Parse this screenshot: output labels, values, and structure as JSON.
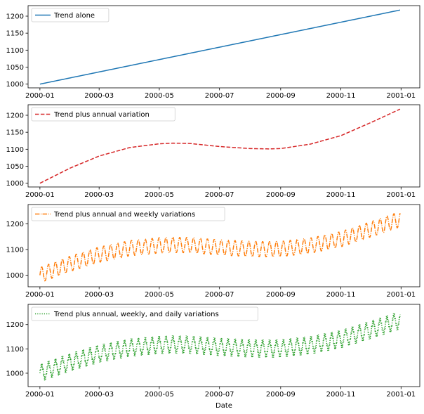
{
  "figure": {
    "xlabel": "Date"
  },
  "chart_data": [
    {
      "type": "line",
      "legend": {
        "placement": "upper-left"
      },
      "xlim": [
        "1999-12-20",
        "2001-01-20"
      ],
      "ylim": [
        989,
        1231
      ],
      "x_ticks": [
        "2000-01",
        "2000-03",
        "2000-05",
        "2000-07",
        "2000-09",
        "2000-11",
        "2001-01"
      ],
      "y_ticks": [
        1000,
        1050,
        1100,
        1150,
        1200
      ],
      "show_x_label": false,
      "series": [
        {
          "name": "Trend alone",
          "color": "#1f77b4",
          "style": "solid",
          "x": [
            "2000-01-01",
            "2000-12-31"
          ],
          "y": [
            1000,
            1218
          ]
        }
      ]
    },
    {
      "type": "line",
      "legend": {
        "placement": "upper-left"
      },
      "xlim": [
        "1999-12-20",
        "2001-01-20"
      ],
      "ylim": [
        989,
        1231
      ],
      "x_ticks": [
        "2000-01",
        "2000-03",
        "2000-05",
        "2000-07",
        "2000-09",
        "2000-11",
        "2001-01"
      ],
      "y_ticks": [
        1000,
        1050,
        1100,
        1150,
        1200
      ],
      "show_x_label": false,
      "series": [
        {
          "name": "Trend plus annual variation",
          "color": "#d62728",
          "style": "dashed",
          "x": [
            "2000-01-01",
            "2000-02-01",
            "2000-03-01",
            "2000-04-01",
            "2000-05-01",
            "2000-05-15",
            "2000-06-01",
            "2000-07-01",
            "2000-08-01",
            "2000-08-20",
            "2000-09-01",
            "2000-10-01",
            "2000-11-01",
            "2000-12-01",
            "2000-12-31"
          ],
          "y": [
            1000,
            1045,
            1080,
            1105,
            1116,
            1118,
            1117,
            1108,
            1102,
            1101,
            1102,
            1115,
            1140,
            1178,
            1218
          ]
        }
      ]
    },
    {
      "type": "line",
      "legend": {
        "placement": "upper-left"
      },
      "xlim": [
        "1999-12-20",
        "2001-01-20"
      ],
      "ylim": [
        955,
        1275
      ],
      "x_ticks": [
        "2000-01",
        "2000-03",
        "2000-05",
        "2000-07",
        "2000-09",
        "2000-11",
        "2001-01"
      ],
      "y_ticks": [
        1000,
        1100,
        1200
      ],
      "show_x_label": false,
      "oscillation": {
        "period_days": 7,
        "amplitude": 30
      },
      "series": [
        {
          "name": "Trend plus annual and weekly variations",
          "color": "#ff7f0e",
          "style": "dashdot",
          "x": [
            "2000-01-01",
            "2000-02-01",
            "2000-03-01",
            "2000-04-01",
            "2000-05-01",
            "2000-05-15",
            "2000-06-01",
            "2000-07-01",
            "2000-08-01",
            "2000-08-20",
            "2000-09-01",
            "2000-10-01",
            "2000-11-01",
            "2000-12-01",
            "2000-12-31"
          ],
          "y": [
            1000,
            1045,
            1080,
            1105,
            1116,
            1118,
            1117,
            1108,
            1102,
            1101,
            1102,
            1115,
            1140,
            1178,
            1218
          ]
        }
      ]
    },
    {
      "type": "line",
      "legend": {
        "placement": "upper-left"
      },
      "xlim": [
        "1999-12-20",
        "2001-01-20"
      ],
      "ylim": [
        945,
        1283
      ],
      "x_ticks": [
        "2000-01",
        "2000-03",
        "2000-05",
        "2000-07",
        "2000-09",
        "2000-11",
        "2001-01"
      ],
      "y_ticks": [
        1000,
        1100,
        1200
      ],
      "show_x_label": true,
      "oscillation": {
        "period_days": 7,
        "amplitude": 30,
        "daily_amplitude": 10
      },
      "series": [
        {
          "name": "Trend plus annual, weekly, and daily variations",
          "color": "#2ca02c",
          "style": "dotted",
          "x": [
            "2000-01-01",
            "2000-02-01",
            "2000-03-01",
            "2000-04-01",
            "2000-05-01",
            "2000-05-15",
            "2000-06-01",
            "2000-07-01",
            "2000-08-01",
            "2000-08-20",
            "2000-09-01",
            "2000-10-01",
            "2000-11-01",
            "2000-12-01",
            "2000-12-31"
          ],
          "y": [
            1000,
            1045,
            1080,
            1105,
            1116,
            1118,
            1117,
            1108,
            1102,
            1101,
            1102,
            1115,
            1140,
            1178,
            1218
          ]
        }
      ]
    }
  ]
}
